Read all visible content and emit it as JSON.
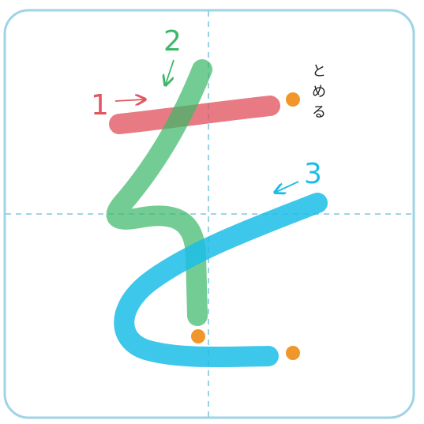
{
  "character": "を",
  "strokes": [
    {
      "number": "1",
      "color": "#e05560"
    },
    {
      "number": "2",
      "color": "#3db86a"
    },
    {
      "number": "3",
      "color": "#1bbde6"
    }
  ],
  "note_text": [
    "と",
    "め",
    "る"
  ],
  "colors": {
    "frame": "#9fd3e6",
    "guide": "#7ec7e0",
    "stop_dot": "#f0962a"
  }
}
